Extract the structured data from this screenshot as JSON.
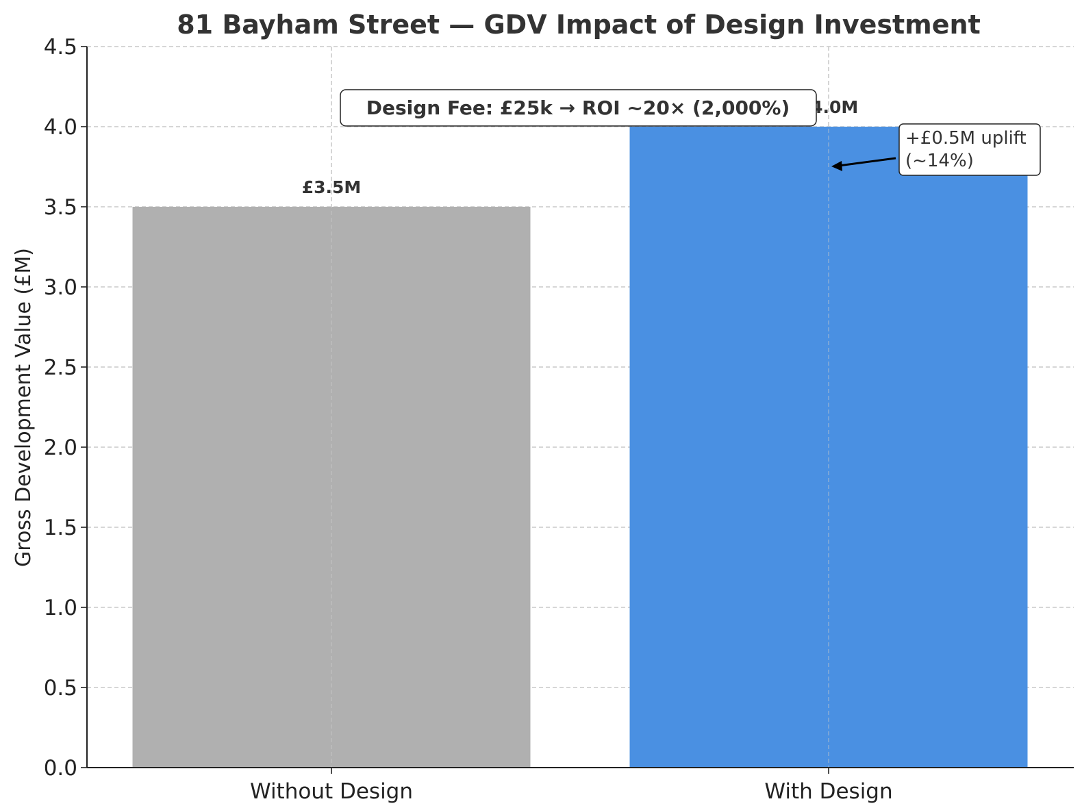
{
  "chart_data": {
    "type": "bar",
    "title": "81 Bayham Street — GDV Impact of Design Investment",
    "xlabel": "",
    "ylabel": "Gross Development Value (£M)",
    "categories": [
      "Without Design",
      "With Design"
    ],
    "values": [
      3.5,
      4.0
    ],
    "data_labels": [
      "£3.5M",
      "£4.0M"
    ],
    "colors": [
      "#b0b0b0",
      "#4a90e2"
    ],
    "ylim": [
      0,
      4.5
    ],
    "yticks": [
      "0.0",
      "0.5",
      "1.0",
      "1.5",
      "2.0",
      "2.5",
      "3.0",
      "3.5",
      "4.0",
      "4.5"
    ],
    "grid": true,
    "annotations": {
      "uplift_line1": "+£0.5M uplift",
      "uplift_line2": "(~14%)",
      "roi": "Design Fee: £25k → ROI ~20× (2,000%)"
    }
  }
}
